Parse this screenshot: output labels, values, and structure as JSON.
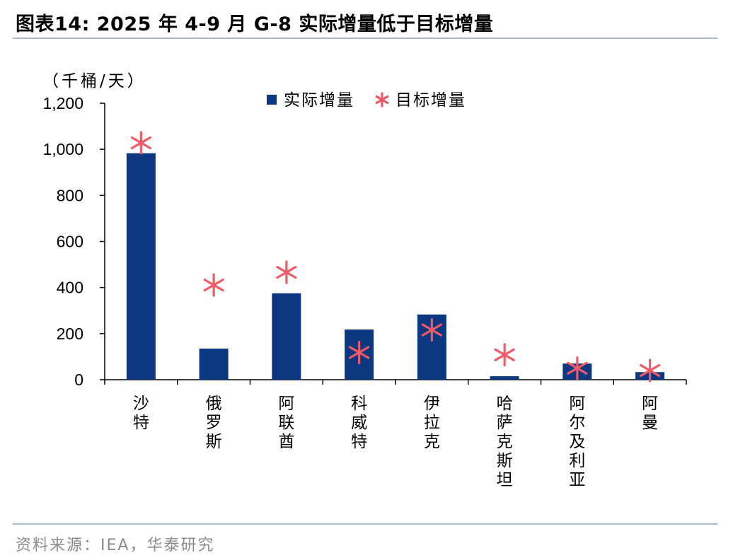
{
  "figure": {
    "title": "图表14:  2025 年 4-9 月 G-8 实际增量低于目标增量",
    "source": "资料来源：IEA，华泰研究"
  },
  "colors": {
    "bar": "#0b3880",
    "marker": "#ef5a66",
    "axis": "#000000",
    "rule": "#a9bcd4"
  },
  "chart_data": {
    "type": "bar",
    "categories": [
      "沙特",
      "俄罗斯",
      "阿联酋",
      "科威特",
      "伊拉克",
      "哈萨克斯坦",
      "阿尔及利亚",
      "阿曼"
    ],
    "series": [
      {
        "name": "实际增量",
        "type": "bar",
        "values": [
          983,
          135,
          375,
          218,
          283,
          15,
          70,
          33
        ]
      },
      {
        "name": "目标增量",
        "type": "scatter",
        "marker": "asterisk",
        "values": [
          1028,
          411,
          466,
          118,
          216,
          108,
          50,
          40
        ]
      }
    ],
    "ylabel": "（千桶/天）",
    "ylim": [
      0,
      1200
    ],
    "yticks": [
      0,
      200,
      400,
      600,
      800,
      1000,
      1200
    ],
    "ytick_labels": [
      "0",
      "200",
      "400",
      "600",
      "800",
      "1,000",
      "1,200"
    ],
    "legend_position": "top-center",
    "grid": false
  }
}
